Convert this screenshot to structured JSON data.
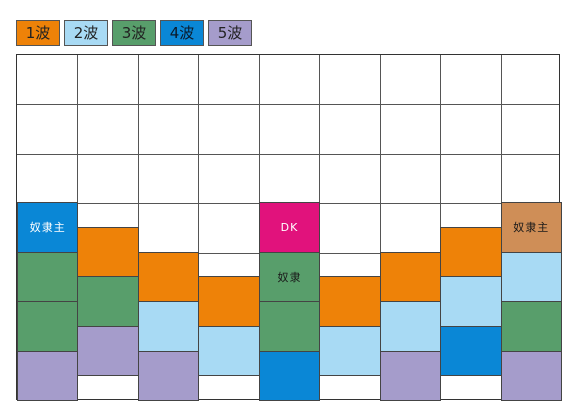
{
  "colors": {
    "wave1": "#ee8208",
    "wave2": "#a8daf4",
    "wave3": "#589e6b",
    "wave4": "#0a87d6",
    "wave5": "#a59ccb",
    "dk": "#e1127c",
    "master_right": "#cf8e57"
  },
  "legend": {
    "items": [
      {
        "label": "1波",
        "color_key": "wave1"
      },
      {
        "label": "2波",
        "color_key": "wave2"
      },
      {
        "label": "3波",
        "color_key": "wave3"
      },
      {
        "label": "4波",
        "color_key": "wave4"
      },
      {
        "label": "5波",
        "color_key": "wave5"
      }
    ]
  },
  "diagram": {
    "columns": 9,
    "rows": 7,
    "blocks": [
      {
        "col": 0,
        "level": 3,
        "color_key": "wave4",
        "label": "奴隶主"
      },
      {
        "col": 0,
        "level": 4,
        "color_key": "wave3",
        "label": ""
      },
      {
        "col": 0,
        "level": 5,
        "color_key": "wave3",
        "label": ""
      },
      {
        "col": 0,
        "level": 6,
        "color_key": "wave5",
        "label": ""
      },
      {
        "col": 1,
        "level": 3.5,
        "color_key": "wave1",
        "label": ""
      },
      {
        "col": 1,
        "level": 4.5,
        "color_key": "wave3",
        "label": ""
      },
      {
        "col": 1,
        "level": 5.5,
        "color_key": "wave5",
        "label": ""
      },
      {
        "col": 2,
        "level": 4,
        "color_key": "wave1",
        "label": ""
      },
      {
        "col": 2,
        "level": 5,
        "color_key": "wave2",
        "label": ""
      },
      {
        "col": 2,
        "level": 6,
        "color_key": "wave5",
        "label": ""
      },
      {
        "col": 3,
        "level": 4.5,
        "color_key": "wave1",
        "label": ""
      },
      {
        "col": 3,
        "level": 5.5,
        "color_key": "wave2",
        "label": ""
      },
      {
        "col": 4,
        "level": 3,
        "color_key": "dk",
        "label": "DK"
      },
      {
        "col": 4,
        "level": 4,
        "color_key": "wave3",
        "label": "奴隶"
      },
      {
        "col": 4,
        "level": 5,
        "color_key": "wave3",
        "label": ""
      },
      {
        "col": 4,
        "level": 6,
        "color_key": "wave4",
        "label": ""
      },
      {
        "col": 5,
        "level": 4.5,
        "color_key": "wave1",
        "label": ""
      },
      {
        "col": 5,
        "level": 5.5,
        "color_key": "wave2",
        "label": ""
      },
      {
        "col": 6,
        "level": 4,
        "color_key": "wave1",
        "label": ""
      },
      {
        "col": 6,
        "level": 5,
        "color_key": "wave2",
        "label": ""
      },
      {
        "col": 6,
        "level": 6,
        "color_key": "wave5",
        "label": ""
      },
      {
        "col": 7,
        "level": 3.5,
        "color_key": "wave1",
        "label": ""
      },
      {
        "col": 7,
        "level": 4.5,
        "color_key": "wave2",
        "label": ""
      },
      {
        "col": 7,
        "level": 5.5,
        "color_key": "wave4",
        "label": ""
      },
      {
        "col": 8,
        "level": 3,
        "color_key": "master_right",
        "label": "奴隶主"
      },
      {
        "col": 8,
        "level": 4,
        "color_key": "wave2",
        "label": ""
      },
      {
        "col": 8,
        "level": 5,
        "color_key": "wave3",
        "label": ""
      },
      {
        "col": 8,
        "level": 6,
        "color_key": "wave5",
        "label": ""
      }
    ]
  }
}
